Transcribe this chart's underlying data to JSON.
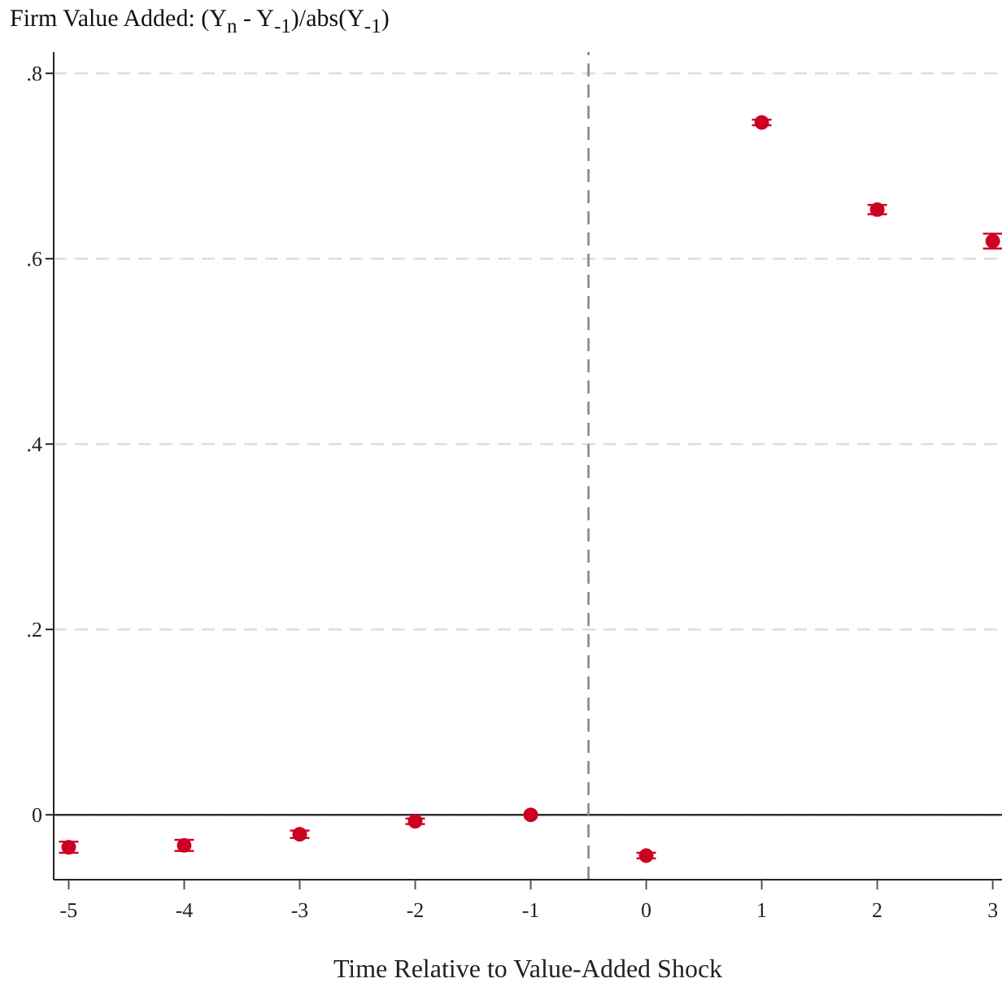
{
  "chart_data": {
    "type": "scatter",
    "title": "Firm Value Added: (Y$_{n}$ - Y$_{-1}$)/abs(Y$_{-1}$)",
    "xlabel": "Time Relative to Value-Added Shock",
    "x": [
      -5,
      -4,
      -3,
      -2,
      -1,
      0,
      1,
      2,
      3
    ],
    "series": [
      {
        "color": "#cc0022",
        "values": [
          -0.035,
          -0.033,
          -0.021,
          -0.007,
          0,
          -0.044,
          0.747,
          0.653,
          0.619
        ],
        "errors": [
          0.006,
          0.006,
          0.004,
          0.003,
          null,
          0.003,
          0.003,
          0.005,
          0.008
        ]
      }
    ],
    "xlim": [
      -5.13,
      3.08
    ],
    "xticks": [
      -5,
      -4,
      -3,
      -2,
      -1,
      0,
      1,
      2,
      3
    ],
    "ylim": [
      -0.07,
      0.823
    ],
    "yticks": [
      {
        "value": 0,
        "label": "0"
      },
      {
        "value": 0.2,
        "label": ".2"
      },
      {
        "value": 0.4,
        "label": ".4"
      },
      {
        "value": 0.6,
        "label": ".6"
      },
      {
        "value": 0.8,
        "label": ".8"
      }
    ],
    "grid": "y",
    "marker": "circle",
    "legend": false,
    "ref_lines": [
      {
        "axis": "y",
        "value": 0,
        "color": "#333333",
        "line_style": "solid"
      },
      {
        "axis": "x",
        "value": -0.5,
        "color": "#888888",
        "line_style": "dashed"
      }
    ]
  }
}
